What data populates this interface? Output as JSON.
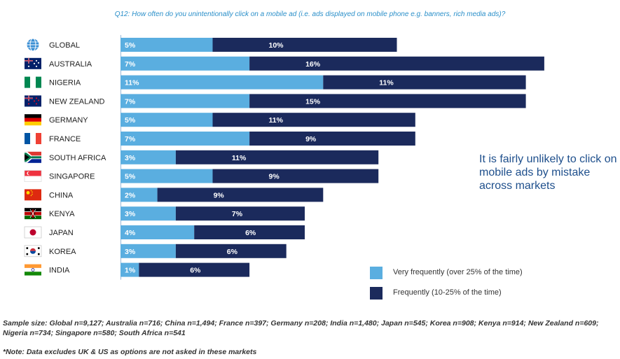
{
  "question": "Q12: How often do you unintentionally click on a mobile ad (i.e. ads displayed on mobile phone e.g. banners, rich media ads)?",
  "callout": "It is fairly unlikely to click on mobile ads by mistake across markets",
  "legend": [
    {
      "label": "Very frequently (over 25% of the time)",
      "color": "#5aaee0"
    },
    {
      "label": "Frequently (10-25% of the time)",
      "color": "#1b2a5c"
    }
  ],
  "sample_size": "Sample size: Global n=9,127; Australia n=716; China n=1,494; France n=397; Germany n=208; India n=1,480; Japan n=545; Korea n=908; Kenya n=914; New Zealand n=609; Nigeria n=734; Singapore n=580; South Africa n=541",
  "note": "*Note: Data excludes UK & US as options are not asked in these markets",
  "chart_data": {
    "type": "bar",
    "orientation": "horizontal",
    "stacked": true,
    "categories": [
      "GLOBAL",
      "AUSTRALIA",
      "NIGERIA",
      "NEW ZEALAND",
      "GERMANY",
      "FRANCE",
      "SOUTH AFRICA",
      "SINGAPORE",
      "CHINA",
      "KENYA",
      "JAPAN",
      "KOREA",
      "INDIA"
    ],
    "flag_icons": [
      "globe-icon",
      "australia-flag-icon",
      "nigeria-flag-icon",
      "new-zealand-flag-icon",
      "germany-flag-icon",
      "france-flag-icon",
      "south-africa-flag-icon",
      "singapore-flag-icon",
      "china-flag-icon",
      "kenya-flag-icon",
      "japan-flag-icon",
      "korea-flag-icon",
      "india-flag-icon"
    ],
    "series": [
      {
        "name": "Very frequently (over 25% of the time)",
        "color": "#5aaee0",
        "values": [
          5,
          7,
          11,
          7,
          5,
          7,
          3,
          5,
          2,
          3,
          4,
          3,
          1
        ]
      },
      {
        "name": "Frequently (10-25% of the time)",
        "color": "#1b2a5c",
        "values": [
          10,
          16,
          11,
          15,
          11,
          9,
          11,
          9,
          9,
          7,
          6,
          6,
          6
        ]
      }
    ],
    "value_suffix": "%",
    "xlim": [
      0,
      23
    ],
    "grid": false,
    "legend_position": "bottom-right"
  }
}
